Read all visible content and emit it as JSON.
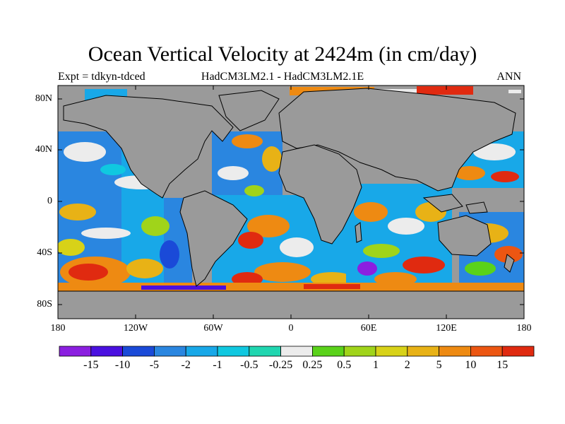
{
  "title": "Ocean Vertical Velocity at 2424m (in cm/day)",
  "subtitle_left": "Expt = tdkyn-tdced",
  "subtitle_center": "HadCM3LM2.1 - HadCM3LM2.1E",
  "subtitle_right": "ANN",
  "lat_ticks": [
    "80N",
    "40N",
    "0",
    "40S",
    "80S"
  ],
  "lon_ticks": [
    "180",
    "120W",
    "60W",
    "0",
    "60E",
    "120E",
    "180"
  ],
  "colorbar_labels": [
    "-15",
    "-10",
    "-5",
    "-2",
    "-1",
    "-0.5",
    "-0.25",
    "0.25",
    "0.5",
    "1",
    "2",
    "5",
    "10",
    "15"
  ],
  "colorbar_colors": [
    "#8b1fe0",
    "#4a10e0",
    "#1a4ad8",
    "#2a86e0",
    "#18a8e8",
    "#10c8e0",
    "#20d6b0",
    "#ececec",
    "#5ad21a",
    "#a0d41a",
    "#d8d218",
    "#e8b216",
    "#ee8a12",
    "#ec5612",
    "#e02a10"
  ],
  "colors": {
    "land": "#9a9a9a",
    "background": "#ffffff"
  }
}
